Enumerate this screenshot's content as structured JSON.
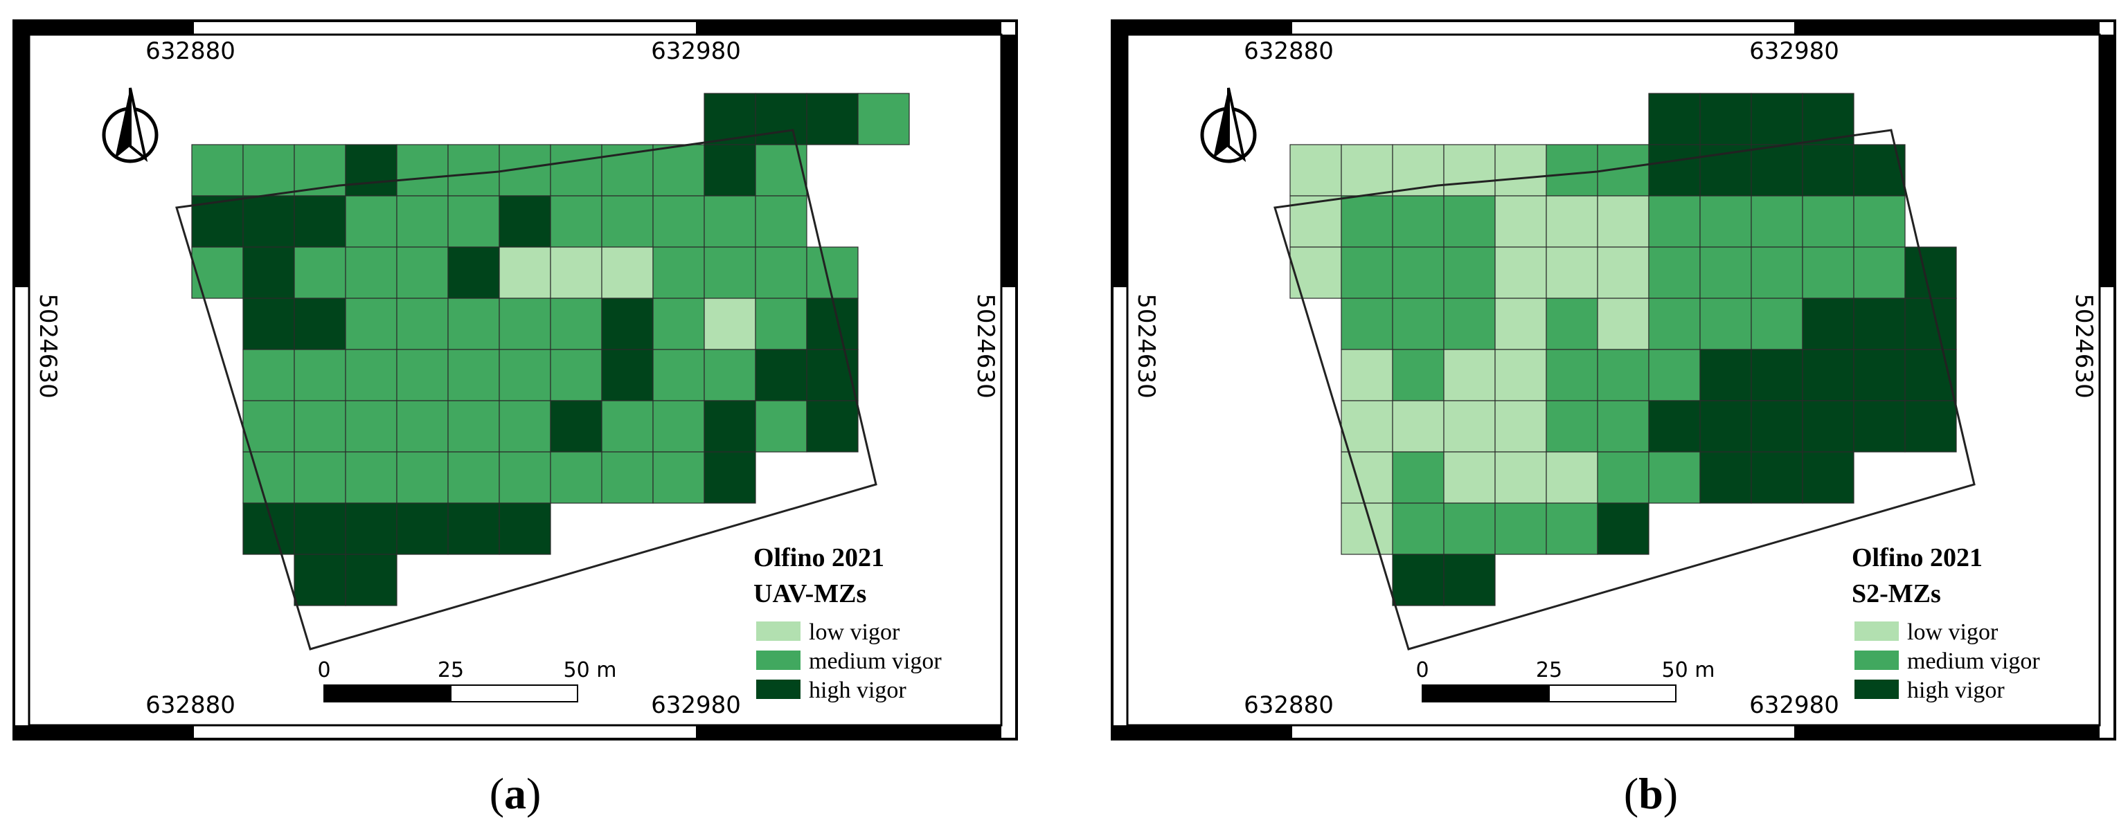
{
  "colors": {
    "low": "#b2e0b0",
    "medium": "#41a85f",
    "high": "#00441b",
    "frame": "#000000",
    "background": "#ffffff",
    "grid_line": "#2b2b2b"
  },
  "icons": {
    "north_arrow": "north-arrow-icon"
  },
  "panels": [
    {
      "label_open": "(",
      "label": "a",
      "label_close": ")",
      "x_ticks_top": [
        "632880",
        "632980"
      ],
      "x_ticks_bottom": [
        "632880",
        "632980"
      ],
      "y_tick_left": "5024630",
      "y_tick_right": "5024630",
      "legend": {
        "title": "Olfino 2021",
        "subtitle": "UAV-MZs",
        "items": [
          {
            "class": "low",
            "label": "low vigor"
          },
          {
            "class": "medium",
            "label": "medium vigor"
          },
          {
            "class": "high",
            "label": "high vigor"
          }
        ]
      },
      "scale": {
        "labels": [
          "0",
          "25",
          "50 m"
        ]
      },
      "grid": {
        "rows": 10,
        "cols": 13,
        "cells": [
          "...........HHHM",
          "MMMHMMMMMMHM",
          "HHHMMMHMMMMM",
          "MHMMMHLLLMMMM",
          "-HHMMMMMHMLMH",
          "-MMMMMMMHMMHH",
          "-MMMMMMHMMHMH",
          "-MMMMMMMMMH",
          "-HHHHHH",
          "--HH"
        ]
      }
    },
    {
      "label_open": "(",
      "label": "b",
      "label_close": ")",
      "x_ticks_top": [
        "632880",
        "632980"
      ],
      "x_ticks_bottom": [
        "632880",
        "632980"
      ],
      "y_tick_left": "5024630",
      "y_tick_right": "5024630",
      "legend": {
        "title": "Olfino 2021",
        "subtitle": "S2-MZs",
        "items": [
          {
            "class": "low",
            "label": "low vigor"
          },
          {
            "class": "medium",
            "label": "medium vigor"
          },
          {
            "class": "high",
            "label": "high vigor"
          }
        ]
      },
      "scale": {
        "labels": [
          "0",
          "25",
          "50 m"
        ]
      },
      "grid": {
        "rows": 10,
        "cols": 13,
        "cells": [
          "........HHHH",
          "LLLLLMMHHHHH",
          "LMMMLLLMMMMM",
          "LMMMLLLMMMMMH",
          "-MMMLMLMMMHHH",
          "-LMLLMMMHHHHH",
          "-LLLLMMHHHHHH",
          "-LMLLLMMHHH",
          "-LMMMMH",
          "--HH"
        ]
      }
    }
  ]
}
